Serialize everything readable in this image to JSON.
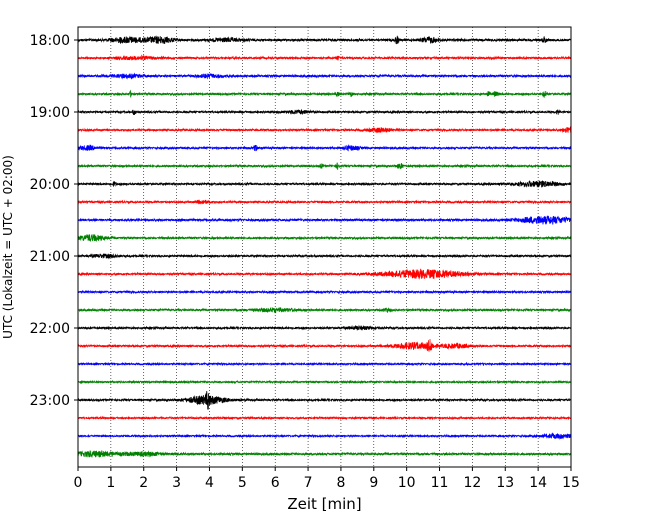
{
  "chart_data": {
    "type": "line",
    "subtype": "helicorder-seismogram",
    "title": "",
    "xlabel": "Zeit  [min]",
    "ylabel": "UTC (Lokalzeit = UTC + 02:00)",
    "xlim": [
      0,
      15
    ],
    "x_ticks": [
      0,
      1,
      2,
      3,
      4,
      5,
      6,
      7,
      8,
      9,
      10,
      11,
      12,
      13,
      14,
      15
    ],
    "y_tick_labels": [
      "18:00",
      "19:00",
      "20:00",
      "21:00",
      "22:00",
      "23:00"
    ],
    "grid": "vertical-dotted",
    "trace_color_cycle": [
      "#000000",
      "#ff0000",
      "#0000ff",
      "#008000"
    ],
    "traces": [
      {
        "start": "18:00",
        "color": "#000000",
        "noise": 2.2,
        "events": [
          {
            "t": 1.5,
            "amp": 5,
            "dur": 0.5
          },
          {
            "t": 2.5,
            "amp": 6,
            "dur": 0.4
          },
          {
            "t": 4.5,
            "amp": 3,
            "dur": 0.5
          },
          {
            "t": 9.7,
            "amp": 7,
            "dur": 0.06
          },
          {
            "t": 10.7,
            "amp": 5,
            "dur": 0.25
          },
          {
            "t": 14.2,
            "amp": 6,
            "dur": 0.06
          }
        ]
      },
      {
        "start": "18:15",
        "color": "#ff0000",
        "noise": 1.8,
        "events": [
          {
            "t": 1.8,
            "amp": 3,
            "dur": 0.6
          },
          {
            "t": 7.9,
            "amp": 4,
            "dur": 0.05
          }
        ]
      },
      {
        "start": "18:30",
        "color": "#0000ff",
        "noise": 2.0,
        "events": [
          {
            "t": 1.5,
            "amp": 3,
            "dur": 0.5
          },
          {
            "t": 4.0,
            "amp": 3,
            "dur": 0.4
          }
        ]
      },
      {
        "start": "18:45",
        "color": "#008000",
        "noise": 1.8,
        "events": [
          {
            "t": 1.6,
            "amp": 5,
            "dur": 0.05
          },
          {
            "t": 7.9,
            "amp": 5,
            "dur": 0.05
          },
          {
            "t": 8.3,
            "amp": 4,
            "dur": 0.06
          },
          {
            "t": 12.5,
            "amp": 5,
            "dur": 0.05
          },
          {
            "t": 12.7,
            "amp": 4,
            "dur": 0.08
          },
          {
            "t": 14.2,
            "amp": 7,
            "dur": 0.05
          }
        ]
      },
      {
        "start": "19:00",
        "color": "#000000",
        "noise": 1.8,
        "events": [
          {
            "t": 1.7,
            "amp": 5,
            "dur": 0.05
          },
          {
            "t": 6.7,
            "amp": 3,
            "dur": 0.4
          },
          {
            "t": 14.6,
            "amp": 5,
            "dur": 0.05
          }
        ]
      },
      {
        "start": "19:15",
        "color": "#ff0000",
        "noise": 1.8,
        "events": [
          {
            "t": 9.2,
            "amp": 4,
            "dur": 0.35
          },
          {
            "t": 14.9,
            "amp": 5,
            "dur": 0.15
          }
        ]
      },
      {
        "start": "19:30",
        "color": "#0000ff",
        "noise": 1.8,
        "events": [
          {
            "t": 0.3,
            "amp": 4,
            "dur": 0.3
          },
          {
            "t": 5.4,
            "amp": 6,
            "dur": 0.05
          },
          {
            "t": 8.3,
            "amp": 4,
            "dur": 0.25
          }
        ]
      },
      {
        "start": "19:45",
        "color": "#008000",
        "noise": 1.8,
        "events": [
          {
            "t": 7.4,
            "amp": 4,
            "dur": 0.05
          },
          {
            "t": 7.9,
            "amp": 6,
            "dur": 0.05
          },
          {
            "t": 9.8,
            "amp": 5,
            "dur": 0.1
          }
        ]
      },
      {
        "start": "20:00",
        "color": "#000000",
        "noise": 1.8,
        "events": [
          {
            "t": 1.1,
            "amp": 4,
            "dur": 0.05
          },
          {
            "t": 14.0,
            "amp": 5,
            "dur": 0.7
          }
        ]
      },
      {
        "start": "20:15",
        "color": "#ff0000",
        "noise": 1.8,
        "events": [
          {
            "t": 3.8,
            "amp": 3,
            "dur": 0.2
          }
        ]
      },
      {
        "start": "20:30",
        "color": "#0000ff",
        "noise": 2.0,
        "events": [
          {
            "t": 14.2,
            "amp": 7,
            "dur": 0.8
          }
        ]
      },
      {
        "start": "20:45",
        "color": "#008000",
        "noise": 1.8,
        "events": [
          {
            "t": 0.4,
            "amp": 6,
            "dur": 0.4
          }
        ]
      },
      {
        "start": "21:00",
        "color": "#000000",
        "noise": 1.8,
        "events": [
          {
            "t": 0.8,
            "amp": 3,
            "dur": 0.4
          }
        ]
      },
      {
        "start": "21:15",
        "color": "#ff0000",
        "noise": 1.8,
        "events": [
          {
            "t": 10.5,
            "amp": 8,
            "dur": 1.2
          }
        ]
      },
      {
        "start": "21:30",
        "color": "#0000ff",
        "noise": 1.8,
        "events": []
      },
      {
        "start": "21:45",
        "color": "#008000",
        "noise": 1.8,
        "events": [
          {
            "t": 6.0,
            "amp": 3,
            "dur": 0.7
          },
          {
            "t": 9.4,
            "amp": 4,
            "dur": 0.1
          }
        ]
      },
      {
        "start": "22:00",
        "color": "#000000",
        "noise": 1.8,
        "events": [
          {
            "t": 8.6,
            "amp": 3,
            "dur": 0.4
          }
        ]
      },
      {
        "start": "22:15",
        "color": "#ff0000",
        "noise": 1.8,
        "events": [
          {
            "t": 10.2,
            "amp": 6,
            "dur": 0.6
          },
          {
            "t": 10.7,
            "amp": 9,
            "dur": 0.08
          },
          {
            "t": 11.5,
            "amp": 4,
            "dur": 0.4
          }
        ]
      },
      {
        "start": "22:30",
        "color": "#0000ff",
        "noise": 1.6,
        "events": []
      },
      {
        "start": "22:45",
        "color": "#008000",
        "noise": 1.6,
        "events": []
      },
      {
        "start": "23:00",
        "color": "#000000",
        "noise": 1.8,
        "events": [
          {
            "t": 3.9,
            "amp": 8,
            "dur": 0.6
          },
          {
            "t": 3.95,
            "amp": 14,
            "dur": 0.05
          }
        ]
      },
      {
        "start": "23:15",
        "color": "#ff0000",
        "noise": 1.6,
        "events": []
      },
      {
        "start": "23:30",
        "color": "#0000ff",
        "noise": 1.6,
        "events": [
          {
            "t": 14.6,
            "amp": 4,
            "dur": 0.5
          }
        ]
      },
      {
        "start": "23:45",
        "color": "#008000",
        "noise": 2.0,
        "events": [
          {
            "t": 0.5,
            "amp": 5,
            "dur": 0.7
          },
          {
            "t": 2.0,
            "amp": 3,
            "dur": 0.6
          }
        ]
      }
    ]
  }
}
